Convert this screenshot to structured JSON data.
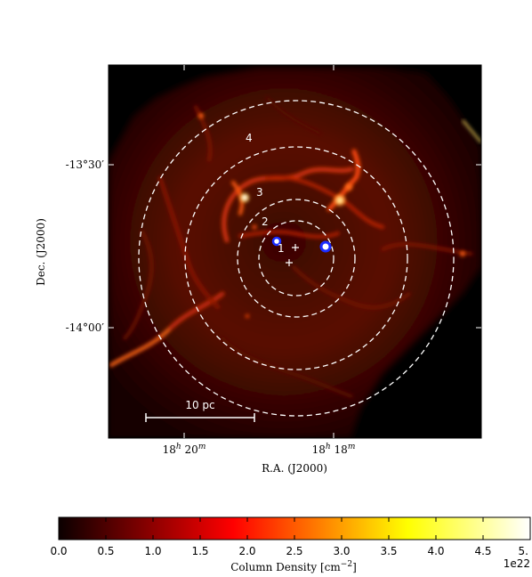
{
  "image": {
    "x_label": "R.A. (J2000)",
    "y_label": "Dec. (J2000)",
    "x_ticks": [
      {
        "base": "18",
        "sup_h": "h",
        "mid": " 20",
        "sup_m": "m"
      },
      {
        "base": "18",
        "sup_h": "h",
        "mid": " 18",
        "sup_m": "m"
      }
    ],
    "y_ticks": [
      "-13°30′",
      "-14°00′"
    ],
    "ring_labels": [
      "1",
      "2",
      "3",
      "4"
    ],
    "scale_bar_label": "10 pc"
  },
  "colorbar": {
    "label": "Column Density [cm",
    "label_sup": "−2",
    "label_end": "]",
    "ticks": [
      "0.0",
      "0.5",
      "1.0",
      "1.5",
      "2.0",
      "2.5",
      "3.0",
      "3.5",
      "4.0",
      "4.5",
      "5."
    ],
    "offset_text": "1e22",
    "colormap": "hot"
  }
}
